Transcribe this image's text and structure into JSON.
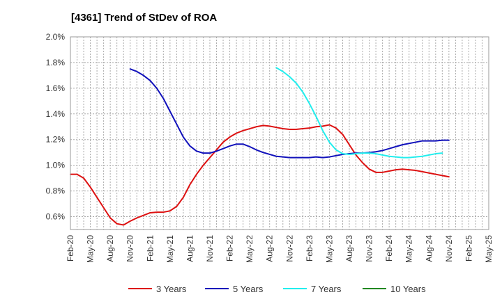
{
  "chart_data": {
    "type": "line",
    "title": "[4361]  Trend of StDev of ROA",
    "xlabel": "",
    "ylabel": "",
    "ylim": [
      0.5,
      2.0
    ],
    "yticks": [
      0.6,
      0.8,
      1.0,
      1.2,
      1.4,
      1.6,
      1.8,
      2.0
    ],
    "ytick_labels": [
      "0.6%",
      "0.8%",
      "1.0%",
      "1.2%",
      "1.4%",
      "1.6%",
      "1.8%",
      "2.0%"
    ],
    "x_categories": [
      "Feb-20",
      "May-20",
      "Aug-20",
      "Nov-20",
      "Feb-21",
      "May-21",
      "Aug-21",
      "Nov-21",
      "Feb-22",
      "May-22",
      "Aug-22",
      "Nov-22",
      "Feb-23",
      "May-23",
      "Aug-23",
      "Nov-23",
      "Feb-24",
      "May-24",
      "Aug-24",
      "Nov-24",
      "Feb-25",
      "May-25"
    ],
    "grid": true,
    "legend_position": "bottom",
    "series": [
      {
        "name": "3 Years",
        "color": "#dd1111",
        "start_index": 0,
        "values": [
          0.93,
          0.93,
          0.9,
          0.83,
          0.75,
          0.67,
          0.59,
          0.545,
          0.535,
          0.565,
          0.59,
          0.61,
          0.63,
          0.635,
          0.635,
          0.645,
          0.68,
          0.75,
          0.85,
          0.93,
          1.0,
          1.06,
          1.12,
          1.18,
          1.22,
          1.25,
          1.27,
          1.285,
          1.3,
          1.31,
          1.305,
          1.295,
          1.285,
          1.28,
          1.28,
          1.285,
          1.29,
          1.3,
          1.305,
          1.315,
          1.29,
          1.24,
          1.16,
          1.08,
          1.02,
          0.97,
          0.945,
          0.945,
          0.955,
          0.965,
          0.97,
          0.965,
          0.96,
          0.95,
          0.94,
          0.93,
          0.92,
          0.91
        ]
      },
      {
        "name": "5 Years",
        "color": "#1111bb",
        "start_index": 9,
        "values": [
          1.75,
          1.73,
          1.7,
          1.66,
          1.6,
          1.52,
          1.42,
          1.32,
          1.22,
          1.15,
          1.11,
          1.095,
          1.095,
          1.11,
          1.13,
          1.15,
          1.165,
          1.165,
          1.145,
          1.12,
          1.1,
          1.085,
          1.07,
          1.065,
          1.06,
          1.06,
          1.06,
          1.06,
          1.065,
          1.06,
          1.065,
          1.075,
          1.085,
          1.09,
          1.095,
          1.095,
          1.1,
          1.105,
          1.115,
          1.13,
          1.145,
          1.16,
          1.17,
          1.18,
          1.19,
          1.19,
          1.19,
          1.195,
          1.195
        ]
      },
      {
        "name": "7 Years",
        "color": "#22eeee",
        "start_index": 31,
        "values": [
          1.76,
          1.73,
          1.69,
          1.64,
          1.57,
          1.48,
          1.38,
          1.27,
          1.18,
          1.12,
          1.09,
          1.085,
          1.09,
          1.095,
          1.095,
          1.09,
          1.08,
          1.07,
          1.065,
          1.06,
          1.06,
          1.065,
          1.07,
          1.08,
          1.09,
          1.095
        ]
      },
      {
        "name": "10 Years",
        "color": "#228822",
        "start_index": 0,
        "values": []
      }
    ]
  }
}
